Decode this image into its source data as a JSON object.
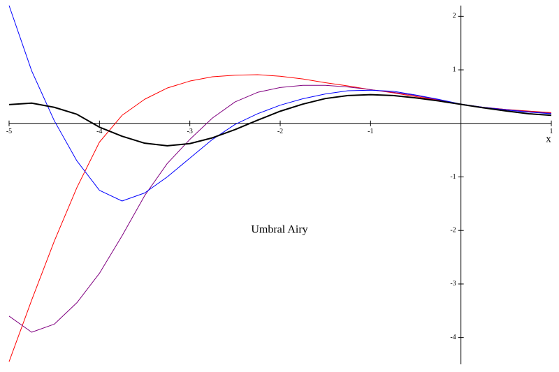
{
  "chart_data": {
    "type": "line",
    "annotation": "Umbral Airy",
    "x_label": "x",
    "x": [
      -5,
      -4.75,
      -4.5,
      -4.25,
      -4,
      -3.75,
      -3.5,
      -3.25,
      -3,
      -2.75,
      -2.5,
      -2.25,
      -2,
      -1.75,
      -1.5,
      -1.25,
      -1,
      -0.75,
      -0.5,
      -0.25,
      0,
      0.25,
      0.5,
      0.75,
      1
    ],
    "series": [
      {
        "color": "#ff0000",
        "width": 1,
        "values": [
          -4.45,
          -3.3,
          -2.2,
          -1.2,
          -0.35,
          0.15,
          0.45,
          0.66,
          0.79,
          0.87,
          0.9,
          0.91,
          0.88,
          0.83,
          0.76,
          0.7,
          0.63,
          0.57,
          0.5,
          0.43,
          0.355,
          0.3,
          0.26,
          0.23,
          0.2
        ]
      },
      {
        "color": "#800080",
        "width": 1,
        "values": [
          -3.6,
          -3.9,
          -3.75,
          -3.35,
          -2.8,
          -2.1,
          -1.35,
          -0.75,
          -0.3,
          0.1,
          0.4,
          0.58,
          0.67,
          0.71,
          0.71,
          0.68,
          0.63,
          0.58,
          0.52,
          0.44,
          0.355,
          0.3,
          0.26,
          0.22,
          0.19
        ]
      },
      {
        "color": "#0000ff",
        "width": 1,
        "values": [
          2.2,
          0.98,
          0.05,
          -0.7,
          -1.25,
          -1.45,
          -1.3,
          -1.0,
          -0.65,
          -0.3,
          -0.02,
          0.18,
          0.34,
          0.46,
          0.55,
          0.61,
          0.62,
          0.6,
          0.53,
          0.45,
          0.36,
          0.3,
          0.25,
          0.21,
          0.18
        ]
      },
      {
        "color": "#000000",
        "width": 2,
        "values": [
          0.35,
          0.378,
          0.3,
          0.17,
          -0.07,
          -0.24,
          -0.37,
          -0.419,
          -0.378,
          -0.27,
          -0.116,
          0.06,
          0.227,
          0.36,
          0.464,
          0.52,
          0.536,
          0.52,
          0.476,
          0.42,
          0.355,
          0.29,
          0.232,
          0.18,
          0.15
        ]
      }
    ],
    "xlim": [
      -5,
      1
    ],
    "ylim": [
      -4.5,
      2.2
    ],
    "xticks": [
      -5,
      -4,
      -3,
      -2,
      -1,
      1
    ],
    "yticks": [
      -4,
      -3,
      -2,
      -1,
      1,
      2
    ],
    "grid": false
  }
}
